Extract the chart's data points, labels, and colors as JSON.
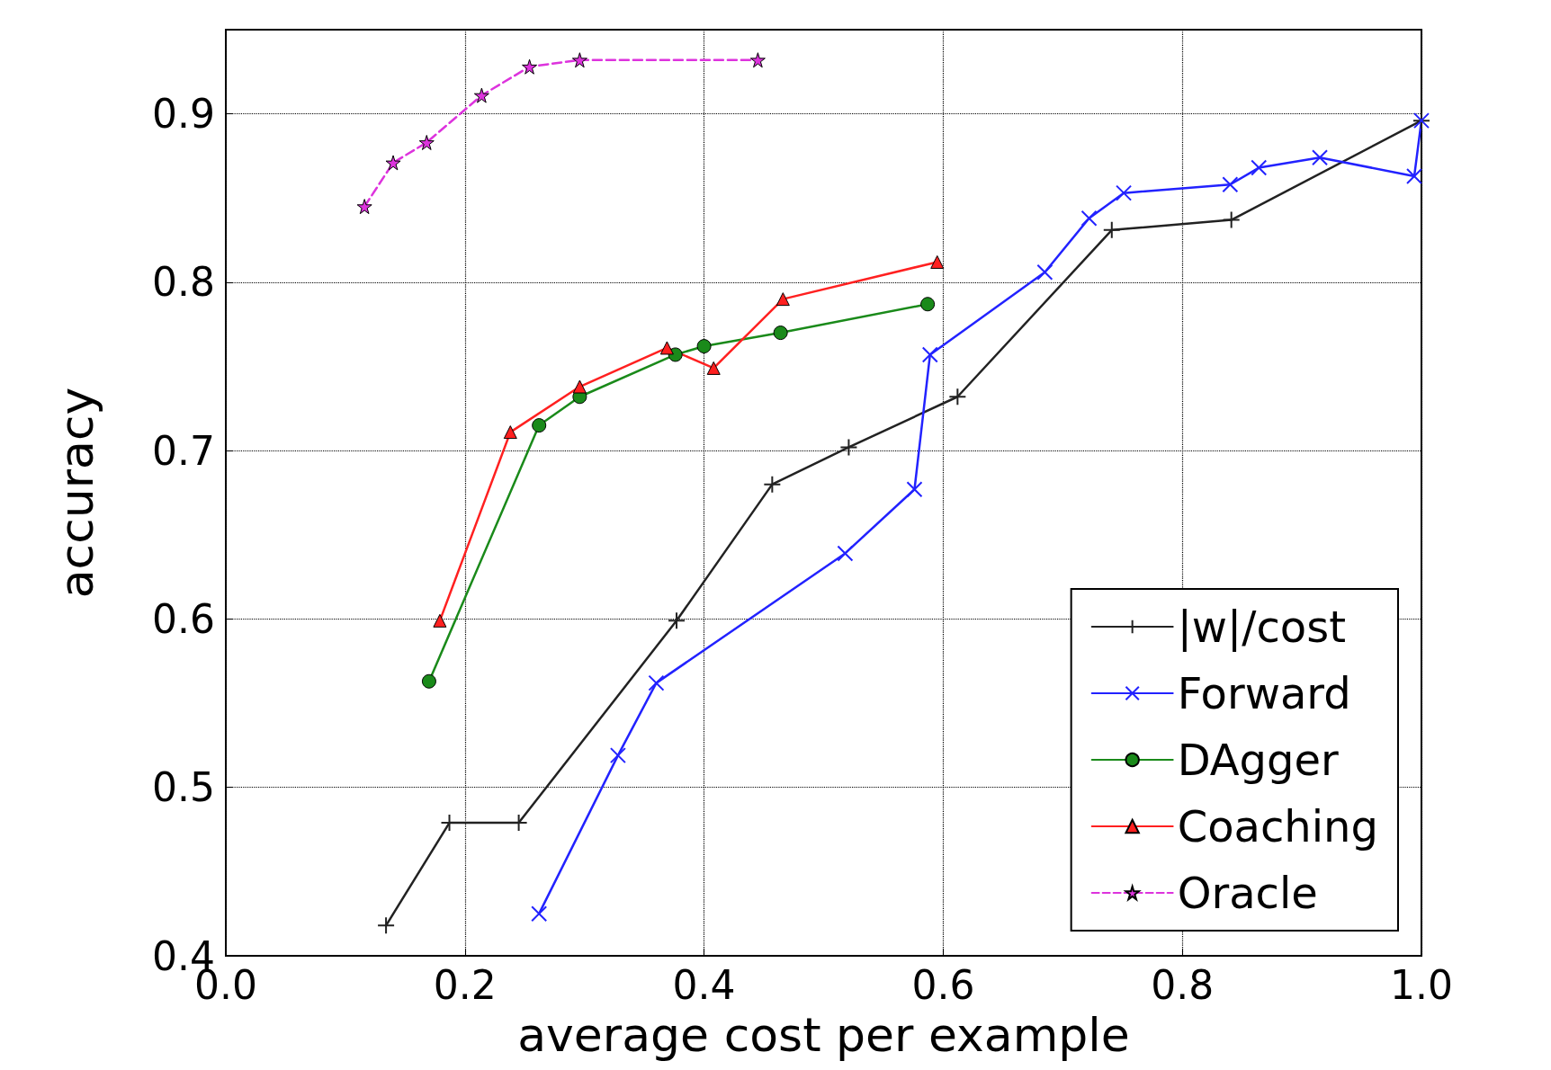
{
  "chart_data": {
    "type": "line",
    "xlabel": "average cost per example",
    "ylabel": "accuracy",
    "xlim": [
      0.0,
      1.0
    ],
    "xticks": [
      {
        "value": 0,
        "label": "0.0"
      },
      0.2,
      0.4,
      0.6,
      0.8,
      {
        "value": 1,
        "label": "1.0"
      }
    ],
    "ylim": [
      0.4,
      0.95
    ],
    "yticks": [
      0.4,
      0.5,
      0.6,
      0.7,
      0.8,
      0.9
    ],
    "grid": true,
    "legend": "bottom right",
    "series": [
      {
        "name": "|w|/cost",
        "color": "#222222",
        "marker": "plus",
        "line_style": "solid",
        "x": [
          0.134,
          0.187,
          0.245,
          0.377,
          0.457,
          0.521,
          0.612,
          0.741,
          0.841,
          1.0
        ],
        "values": [
          0.418,
          0.479,
          0.479,
          0.599,
          0.68,
          0.702,
          0.732,
          0.831,
          0.837,
          0.896
        ]
      },
      {
        "name": "Forward",
        "color": "#2222ff",
        "marker": "cross",
        "line_style": "solid",
        "x": [
          0.262,
          0.328,
          0.36,
          0.518,
          0.576,
          0.589,
          0.685,
          0.722,
          0.751,
          0.84,
          0.864,
          0.915,
          0.994,
          1.0
        ],
        "values": [
          0.425,
          0.519,
          0.562,
          0.639,
          0.677,
          0.757,
          0.806,
          0.838,
          0.853,
          0.858,
          0.868,
          0.874,
          0.863,
          0.896
        ]
      },
      {
        "name": "DAgger",
        "color": "#1a8a1a",
        "marker": "circle",
        "line_style": "solid",
        "x": [
          0.17,
          0.262,
          0.296,
          0.376,
          0.4,
          0.464,
          0.587
        ],
        "values": [
          0.563,
          0.715,
          0.732,
          0.757,
          0.762,
          0.77,
          0.787
        ]
      },
      {
        "name": "Coaching",
        "color": "#ff2020",
        "marker": "triangle",
        "line_style": "solid",
        "x": [
          0.179,
          0.238,
          0.296,
          0.369,
          0.408,
          0.466,
          0.595
        ],
        "values": [
          0.599,
          0.711,
          0.738,
          0.761,
          0.749,
          0.79,
          0.812
        ]
      },
      {
        "name": "Oracle",
        "color": "#dd33dd",
        "marker": "star",
        "line_style": "dashed",
        "x": [
          0.116,
          0.14,
          0.168,
          0.214,
          0.254,
          0.296,
          0.445
        ],
        "values": [
          0.845,
          0.871,
          0.883,
          0.911,
          0.928,
          0.932,
          0.932
        ]
      }
    ]
  }
}
